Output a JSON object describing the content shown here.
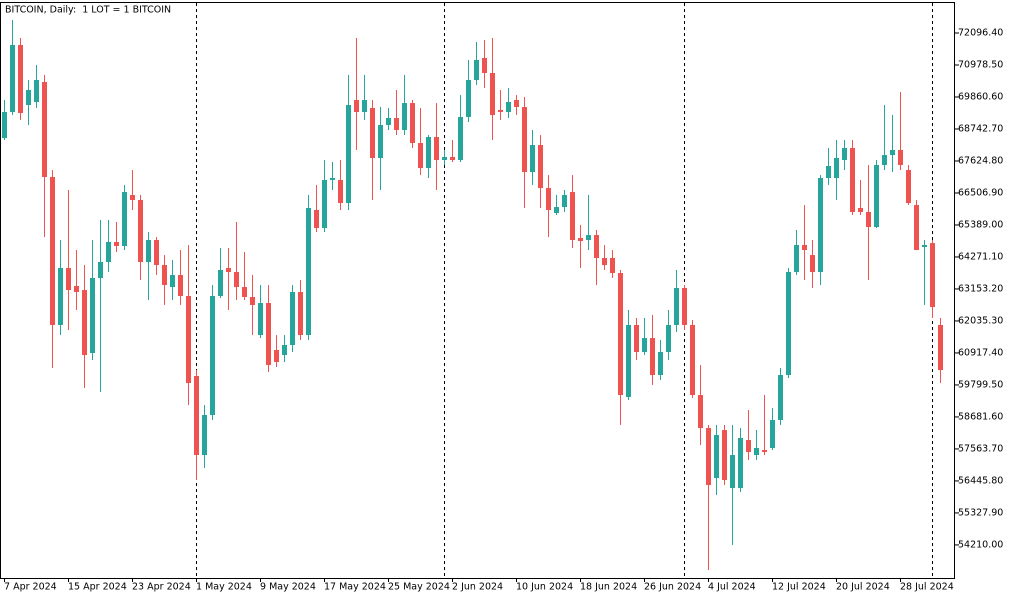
{
  "chart_data": {
    "type": "candlestick",
    "title": "BITCOIN, Daily:  1 LOT = 1 BITCOIN",
    "up_color": "#26a69a",
    "down_color": "#ef5350",
    "categories": [
      "7 Apr 2024",
      null,
      null,
      null,
      null,
      null,
      null,
      null,
      "15 Apr 2024",
      null,
      null,
      null,
      null,
      null,
      null,
      null,
      "23 Apr 2024",
      null,
      null,
      null,
      null,
      null,
      null,
      null,
      "1 May 2024",
      null,
      null,
      null,
      null,
      null,
      null,
      null,
      "9 May 2024",
      null,
      null,
      null,
      null,
      null,
      null,
      null,
      "17 May 2024",
      null,
      null,
      null,
      null,
      null,
      null,
      null,
      "25 May 2024",
      null,
      null,
      null,
      null,
      null,
      null,
      null,
      "2 Jun 2024",
      null,
      null,
      null,
      null,
      null,
      null,
      null,
      "10 Jun 2024",
      null,
      null,
      null,
      null,
      null,
      null,
      null,
      "18 Jun 2024",
      null,
      null,
      null,
      null,
      null,
      null,
      null,
      "26 Jun 2024",
      null,
      null,
      null,
      null,
      null,
      null,
      null,
      "4 Jul 2024",
      null,
      null,
      null,
      null,
      null,
      null,
      null,
      "12 Jul 2024",
      null,
      null,
      null,
      null,
      null,
      null,
      null,
      "20 Jul 2024",
      null,
      null,
      null,
      null,
      null,
      null,
      null,
      "28 Jul 2024",
      null,
      null,
      null,
      null,
      null
    ],
    "open": [
      68427,
      69336,
      71677,
      69580,
      69685,
      70384,
      67065,
      61894,
      63885,
      63256,
      63116,
      60915,
      63536,
      64095,
      64794,
      64654,
      66436,
      66261,
      64095,
      64864,
      63990,
      63221,
      63641,
      62907,
      60112,
      57351,
      58749,
      62907,
      63885,
      63745,
      63221,
      62872,
      61544,
      62662,
      61020,
      60845,
      61195,
      63046,
      61544,
      65912,
      65283,
      66960,
      66960,
      66156,
      69755,
      69336,
      69476,
      67729,
      68882,
      69126,
      68707,
      69650,
      68253,
      67379,
      68462,
      67659,
      67764,
      67659,
      69161,
      70454,
      71223,
      70699,
      69406,
      69336,
      69755,
      69511,
      67240,
      68183,
      66680,
      65807,
      66016,
      66540,
      64933,
      64864,
      65038,
      64235,
      64235,
      63710,
      59378,
      61894,
      60950,
      61439,
      60147,
      60950,
      61894,
      63186,
      61894,
      59448,
      58295,
      56547,
      58225,
      56198,
      56198,
      57876,
      57351,
      57526,
      57596,
      58574,
      60147,
      63745,
      64689,
      64339,
      63745,
      67030,
      67030,
      67659,
      68078,
      65982,
      65842,
      65318,
      67484,
      67833,
      68008,
      67309,
      66086,
      64619,
      64758,
      61894
    ],
    "high": [
      69755,
      72550,
      71921,
      70454,
      70978,
      70629,
      67309,
      64864,
      66610,
      64514,
      63990,
      64864,
      65562,
      65562,
      65492,
      66785,
      67309,
      66436,
      65143,
      64968,
      64339,
      64165,
      64514,
      64689,
      60321,
      59098,
      63291,
      64584,
      64584,
      65492,
      64444,
      63641,
      63291,
      63291,
      61544,
      61544,
      63291,
      63466,
      66436,
      66785,
      67659,
      67589,
      67659,
      70629,
      71921,
      70629,
      69755,
      69511,
      69476,
      70104,
      70629,
      69755,
      69476,
      68532,
      69650,
      68008,
      68357,
      69930,
      71153,
      71782,
      71852,
      71921,
      70104,
      70174,
      69930,
      69860,
      68707,
      68532,
      67135,
      66436,
      66610,
      67135,
      65387,
      66436,
      65213,
      64689,
      64514,
      63815,
      62418,
      62138,
      62138,
      62243,
      61370,
      62418,
      63815,
      63291,
      62068,
      60496,
      58400,
      58400,
      58400,
      58400,
      58295,
      58924,
      58225,
      59448,
      58994,
      60391,
      63885,
      65213,
      66086,
      64864,
      67135,
      68078,
      68357,
      68357,
      68357,
      66960,
      67484,
      67659,
      69580,
      69231,
      70035,
      67484,
      66261,
      64864,
      64864,
      62138
    ],
    "low": [
      68357,
      69231,
      69056,
      68882,
      69476,
      64968,
      60391,
      61544,
      61719,
      62418,
      59692,
      60671,
      59552,
      63745,
      64444,
      64514,
      65912,
      63466,
      62767,
      63641,
      62592,
      62767,
      62592,
      59098,
      56478,
      56897,
      58574,
      62837,
      62418,
      62767,
      62767,
      61544,
      61439,
      60252,
      60426,
      60601,
      60950,
      61370,
      61370,
      65143,
      65143,
      66610,
      65912,
      65912,
      68008,
      69056,
      66261,
      66610,
      68707,
      68532,
      68532,
      68078,
      67135,
      67030,
      66610,
      67484,
      67589,
      67589,
      68986,
      70279,
      70174,
      68357,
      69056,
      69126,
      69231,
      65982,
      66785,
      65982,
      64968,
      65737,
      65842,
      64584,
      63885,
      64514,
      63291,
      63815,
      63536,
      58400,
      59273,
      60671,
      60845,
      59797,
      59972,
      60671,
      61649,
      61719,
      59343,
      57701,
      53333,
      55954,
      56303,
      54207,
      56058,
      57177,
      57177,
      57351,
      57526,
      58400,
      60042,
      63641,
      63466,
      63187,
      63291,
      66785,
      66261,
      67309,
      65737,
      65737,
      63466,
      65283,
      67309,
      67240,
      67309,
      66086,
      64514,
      62592,
      62138,
      59867
    ],
    "close": [
      69336,
      71677,
      69301,
      70104,
      70454,
      67065,
      61894,
      63885,
      63116,
      63046,
      60845,
      63536,
      64095,
      64794,
      64654,
      66540,
      66261,
      64095,
      64864,
      63990,
      63291,
      63641,
      62907,
      59867,
      57351,
      58749,
      62907,
      63815,
      63745,
      63221,
      62872,
      62593,
      62662,
      60496,
      60601,
      61195,
      63046,
      61544,
      65982,
      65283,
      66960,
      67030,
      66156,
      69580,
      69336,
      69755,
      67729,
      68882,
      69126,
      68707,
      69650,
      68253,
      67379,
      68462,
      67659,
      67764,
      67659,
      69161,
      70454,
      71153,
      70699,
      69231,
      69336,
      69685,
      69511,
      67240,
      68183,
      66680,
      65912,
      66016,
      66436,
      64864,
      64829,
      65038,
      64235,
      63990,
      63710,
      59448,
      61894,
      60950,
      61439,
      60147,
      60950,
      61894,
      63186,
      61894,
      59448,
      58295,
      56303,
      58050,
      56478,
      57351,
      57945,
      57456,
      57596,
      57456,
      58574,
      60147,
      63745,
      64689,
      64514,
      63745,
      67030,
      67449,
      67729,
      68078,
      65842,
      65842,
      65318,
      67484,
      67833,
      68008,
      67484,
      66156,
      64514,
      64689,
      62523,
      60321
    ],
    "ylim": [
      53054,
      73145
    ],
    "yticks": [
      {
        "value": 54210,
        "label": "54210.00"
      },
      {
        "value": 55327.9,
        "label": "55327.90"
      },
      {
        "value": 56445.8,
        "label": "56445.80"
      },
      {
        "value": 57563.7,
        "label": "57563.70"
      },
      {
        "value": 58681.6,
        "label": "58681.60"
      },
      {
        "value": 59799.5,
        "label": "59799.50"
      },
      {
        "value": 60917.4,
        "label": "60917.40"
      },
      {
        "value": 62035.3,
        "label": "62035.30"
      },
      {
        "value": 63153.2,
        "label": "63153.20"
      },
      {
        "value": 64271.1,
        "label": "64271.10"
      },
      {
        "value": 65389,
        "label": "65389.00"
      },
      {
        "value": 66506.9,
        "label": "66506.90"
      },
      {
        "value": 67624.8,
        "label": "67624.80"
      },
      {
        "value": 68742.7,
        "label": "68742.70"
      },
      {
        "value": 69860.6,
        "label": "69860.60"
      },
      {
        "value": 70978.5,
        "label": "70978.50"
      },
      {
        "value": 72096.4,
        "label": "72096.40"
      }
    ]
  }
}
